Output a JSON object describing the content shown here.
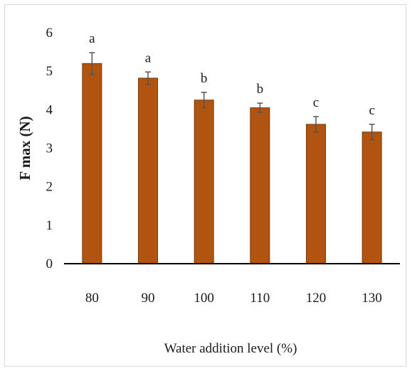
{
  "chart_data": {
    "type": "bar",
    "categories": [
      "80",
      "90",
      "100",
      "110",
      "120",
      "130"
    ],
    "values": [
      5.2,
      4.82,
      4.25,
      4.05,
      3.62,
      3.42
    ],
    "errors": [
      0.28,
      0.16,
      0.2,
      0.12,
      0.2,
      0.2
    ],
    "significance_letters": [
      "a",
      "a",
      "b",
      "b",
      "c",
      "c"
    ],
    "title": "",
    "xlabel": "Water addition level (%)",
    "ylabel": "F max (N)",
    "ylim": [
      0,
      6
    ],
    "yticks": [
      "0",
      "1",
      "2",
      "3",
      "4",
      "5",
      "6"
    ],
    "grid": false,
    "legend": "none",
    "colors": {
      "bar": "#b0540f",
      "bar_edge": "#7a3a08",
      "error_bar": "#555555",
      "axis": "#000000"
    }
  }
}
